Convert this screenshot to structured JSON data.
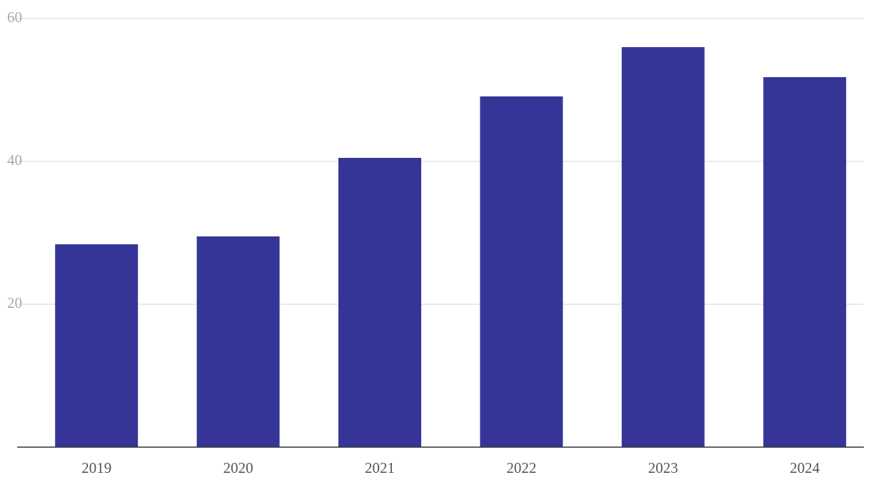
{
  "chart_data": {
    "type": "bar",
    "categories": [
      "2019",
      "2020",
      "2021",
      "2022",
      "2023",
      "2024"
    ],
    "values": [
      28.4,
      29.5,
      40.5,
      49.1,
      56.0,
      51.8
    ],
    "color": "#353598",
    "ylim": [
      0,
      60
    ],
    "yticks": [
      20,
      40,
      60
    ],
    "grid": true
  }
}
